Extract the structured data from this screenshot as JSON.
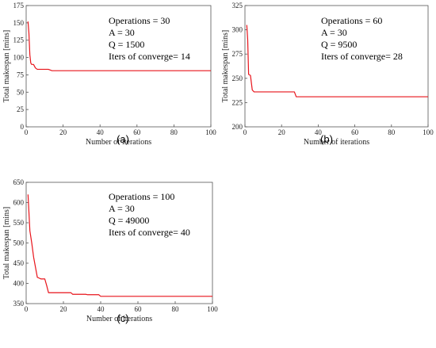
{
  "chart_data": [
    {
      "type": "line",
      "panel_label": "(a)",
      "xlabel": "Number of iterations",
      "ylabel": "Total makespan [mins]",
      "xlim": [
        0,
        100
      ],
      "ylim": [
        0,
        175
      ],
      "xticks": [
        0,
        20,
        40,
        60,
        80,
        100
      ],
      "yticks": [
        0,
        25,
        50,
        75,
        100,
        125,
        150,
        175
      ],
      "grid": false,
      "annotations": [
        "Operations = 30",
        "A = 30",
        "Q = 1500",
        "Iters of converge= 14"
      ],
      "color": "#e8141b",
      "series": [
        {
          "x": [
            1,
            1.5,
            2,
            2.5,
            3,
            4,
            5,
            6,
            7,
            12,
            14,
            100
          ],
          "y": [
            152,
            135,
            104,
            92,
            90,
            90,
            85,
            83,
            83,
            83,
            81,
            81
          ]
        }
      ]
    },
    {
      "type": "line",
      "panel_label": "(b)",
      "xlabel": "Number of iterations",
      "ylabel": "Total makespan [mins]",
      "xlim": [
        0,
        100
      ],
      "ylim": [
        200,
        325
      ],
      "xticks": [
        0,
        20,
        40,
        60,
        80,
        100
      ],
      "yticks": [
        200,
        225,
        250,
        275,
        300,
        325
      ],
      "grid": false,
      "annotations": [
        "Operations = 60",
        "A = 30",
        "Q = 9500",
        "Iters of converge= 28"
      ],
      "color": "#e8141b",
      "series": [
        {
          "x": [
            1,
            1.5,
            2,
            3,
            4,
            5,
            27,
            28,
            100
          ],
          "y": [
            305,
            290,
            254,
            253,
            238,
            236,
            236,
            231,
            231
          ]
        }
      ]
    },
    {
      "type": "line",
      "panel_label": "(c)",
      "xlabel": "Number of iterations",
      "ylabel": "Total makespan [mins]",
      "xlim": [
        0,
        100
      ],
      "ylim": [
        350,
        650
      ],
      "xticks": [
        0,
        20,
        40,
        60,
        80,
        100
      ],
      "yticks": [
        350,
        400,
        450,
        500,
        550,
        600,
        650
      ],
      "grid": false,
      "annotations": [
        "Operations = 100",
        "A = 30",
        "Q = 49000",
        "Iters of converge= 40"
      ],
      "color": "#e8141b",
      "series": [
        {
          "x": [
            1,
            2,
            3,
            4,
            5,
            6,
            7,
            8,
            10,
            11,
            12,
            24,
            25,
            32,
            33,
            39,
            40,
            100
          ],
          "y": [
            620,
            530,
            500,
            465,
            440,
            415,
            413,
            411,
            411,
            395,
            377,
            377,
            373,
            373,
            372,
            372,
            368,
            368
          ]
        }
      ]
    }
  ]
}
